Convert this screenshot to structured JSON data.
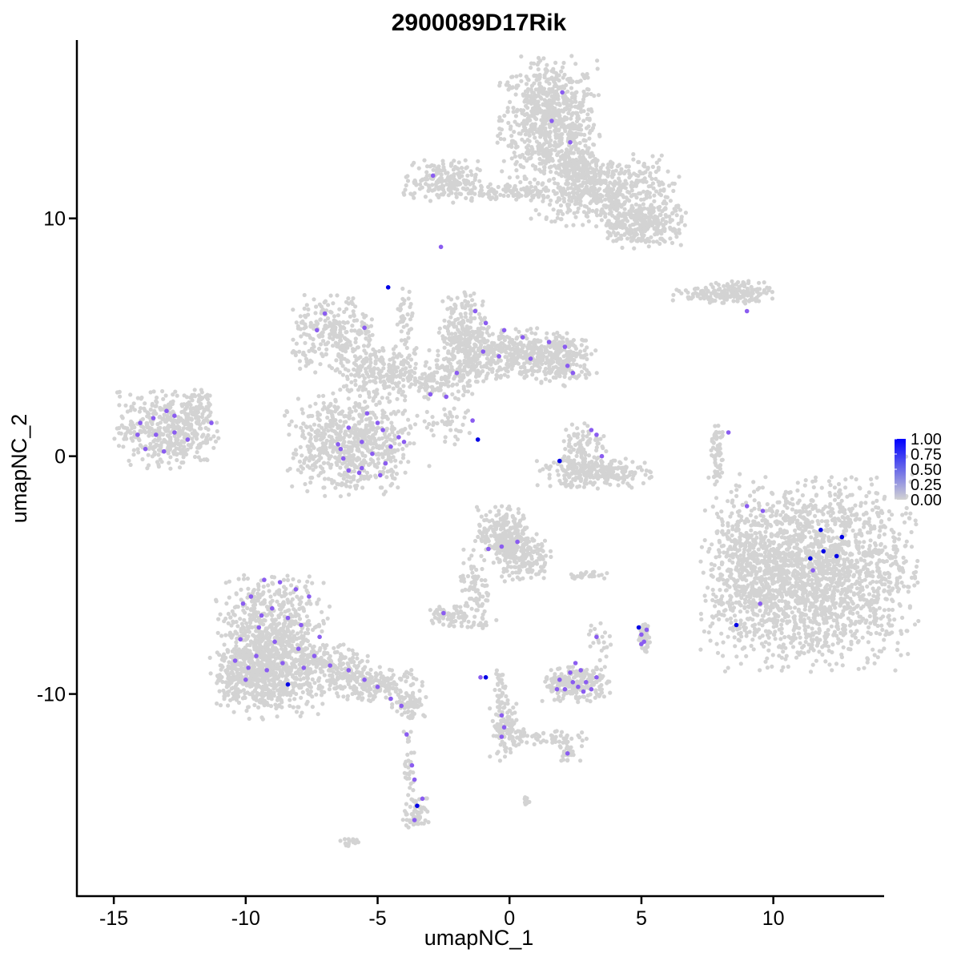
{
  "chart_data": {
    "type": "scatter",
    "title": "2900089D17Rik",
    "xlabel": "umapNC_1",
    "ylabel": "umapNC_2",
    "xlim": [
      -16.4,
      14.2
    ],
    "ylim": [
      -18.5,
      17.5
    ],
    "x_ticks": [
      -15,
      -10,
      -5,
      0,
      5,
      10
    ],
    "y_ticks": [
      -10,
      0,
      10
    ],
    "grid": false,
    "legend": {
      "placement": "right",
      "type": "colorbar",
      "labels": [
        "1.00",
        "0.75",
        "0.50",
        "0.25",
        "0.00"
      ],
      "low_color": "#D3D3D3",
      "high_color": "#0000FF"
    },
    "background_color": "#D3D3D3",
    "clusters": [
      {
        "cx": 1.5,
        "cy": 14.2,
        "sx": 0.9,
        "sy": 1.2,
        "n": 700
      },
      {
        "cx": 3.6,
        "cy": 11.2,
        "sx": 1.3,
        "sy": 0.7,
        "n": 500
      },
      {
        "cx": 5.0,
        "cy": 9.7,
        "sx": 0.8,
        "sy": 0.45,
        "n": 260
      },
      {
        "cx": -2.6,
        "cy": 11.6,
        "sx": 0.7,
        "sy": 0.4,
        "n": 180
      },
      {
        "cx": -0.1,
        "cy": 11.1,
        "sx": 1.2,
        "sy": 0.2,
        "n": 120
      },
      {
        "cx": 2.6,
        "cy": 12.2,
        "sx": 0.4,
        "sy": 0.9,
        "n": 160
      },
      {
        "cx": 8.7,
        "cy": 6.9,
        "sx": 0.6,
        "sy": 0.25,
        "n": 120
      },
      {
        "cx": 7.4,
        "cy": 6.8,
        "sx": 0.6,
        "sy": 0.15,
        "n": 60
      },
      {
        "cx": -13.0,
        "cy": 1.1,
        "sx": 0.9,
        "sy": 0.75,
        "n": 450
      },
      {
        "cx": -11.8,
        "cy": 2.2,
        "sx": 0.3,
        "sy": 0.4,
        "n": 50
      },
      {
        "cx": -6.6,
        "cy": 5.1,
        "sx": 0.8,
        "sy": 0.8,
        "n": 260
      },
      {
        "cx": -4.8,
        "cy": 3.5,
        "sx": 0.9,
        "sy": 0.5,
        "n": 250
      },
      {
        "cx": -6.0,
        "cy": 0.5,
        "sx": 1.15,
        "sy": 1.0,
        "n": 650
      },
      {
        "cx": -1.7,
        "cy": 5.1,
        "sx": 0.45,
        "sy": 0.9,
        "n": 240
      },
      {
        "cx": 0.1,
        "cy": 4.3,
        "sx": 1.3,
        "sy": 0.5,
        "n": 420
      },
      {
        "cx": 2.0,
        "cy": 4.0,
        "sx": 0.6,
        "sy": 0.5,
        "n": 180
      },
      {
        "cx": -2.5,
        "cy": 3.2,
        "sx": 0.6,
        "sy": 0.4,
        "n": 120
      },
      {
        "cx": -4.0,
        "cy": 5.8,
        "sx": 0.15,
        "sy": 0.6,
        "n": 40
      },
      {
        "cx": -2.3,
        "cy": 1.3,
        "sx": 0.6,
        "sy": 0.4,
        "n": 40
      },
      {
        "cx": 3.2,
        "cy": -0.7,
        "sx": 1.0,
        "sy": 0.3,
        "n": 260
      },
      {
        "cx": 2.8,
        "cy": 0.5,
        "sx": 0.4,
        "sy": 0.5,
        "n": 80
      },
      {
        "cx": 7.9,
        "cy": 0.0,
        "sx": 0.12,
        "sy": 0.6,
        "n": 60
      },
      {
        "cx": 11.4,
        "cy": -4.9,
        "sx": 1.9,
        "sy": 1.9,
        "n": 2000
      },
      {
        "cx": 9.1,
        "cy": -4.9,
        "sx": 0.7,
        "sy": 1.3,
        "n": 250
      },
      {
        "cx": -0.2,
        "cy": -3.3,
        "sx": 0.5,
        "sy": 0.55,
        "n": 240
      },
      {
        "cx": 0.5,
        "cy": -4.2,
        "sx": 0.5,
        "sy": 0.5,
        "n": 160
      },
      {
        "cx": -1.3,
        "cy": -5.6,
        "sx": 0.3,
        "sy": 0.8,
        "n": 80
      },
      {
        "cx": -2.3,
        "cy": -6.8,
        "sx": 0.35,
        "sy": 0.25,
        "n": 60
      },
      {
        "cx": 3.0,
        "cy": -5.0,
        "sx": 0.4,
        "sy": 0.1,
        "n": 25
      },
      {
        "cx": -9.0,
        "cy": -8.0,
        "sx": 1.0,
        "sy": 1.4,
        "n": 900
      },
      {
        "cx": -9.6,
        "cy": -9.2,
        "sx": 0.8,
        "sy": 0.6,
        "n": 300
      },
      {
        "cx": -6.8,
        "cy": -9.0,
        "sx": 0.7,
        "sy": 0.5,
        "n": 200
      },
      {
        "cx": -5.0,
        "cy": -9.6,
        "sx": 0.8,
        "sy": 0.35,
        "n": 180
      },
      {
        "cx": -3.8,
        "cy": -10.4,
        "sx": 0.3,
        "sy": 0.3,
        "n": 60
      },
      {
        "cx": -3.5,
        "cy": -15.0,
        "sx": 0.25,
        "sy": 0.35,
        "n": 70
      },
      {
        "cx": -3.8,
        "cy": -13.0,
        "sx": 0.1,
        "sy": 0.9,
        "n": 30
      },
      {
        "cx": 2.5,
        "cy": -9.6,
        "sx": 0.6,
        "sy": 0.35,
        "n": 220
      },
      {
        "cx": 5.1,
        "cy": -7.6,
        "sx": 0.12,
        "sy": 0.3,
        "n": 50
      },
      {
        "cx": -0.1,
        "cy": -11.6,
        "sx": 0.3,
        "sy": 0.6,
        "n": 80
      },
      {
        "cx": 1.2,
        "cy": -11.9,
        "sx": 0.8,
        "sy": 0.2,
        "n": 60
      },
      {
        "cx": -0.3,
        "cy": -10.2,
        "sx": 0.15,
        "sy": 0.7,
        "n": 50
      },
      {
        "cx": 2.3,
        "cy": -12.5,
        "sx": 0.3,
        "sy": 0.2,
        "n": 30
      },
      {
        "cx": 3.4,
        "cy": -7.7,
        "sx": 0.2,
        "sy": 0.4,
        "n": 20
      },
      {
        "cx": -6.0,
        "cy": -16.2,
        "sx": 0.2,
        "sy": 0.1,
        "n": 15
      },
      {
        "cx": 0.6,
        "cy": -14.5,
        "sx": 0.1,
        "sy": 0.1,
        "n": 8
      },
      {
        "cx": -1.0,
        "cy": -7.0,
        "sx": 0.3,
        "sy": 0.15,
        "n": 15
      }
    ],
    "expressed_points": [
      [
        2.0,
        15.3,
        0.6
      ],
      [
        1.6,
        14.1,
        0.6
      ],
      [
        2.3,
        13.2,
        0.6
      ],
      [
        -2.9,
        11.8,
        0.6
      ],
      [
        -2.6,
        8.8,
        0.6
      ],
      [
        -4.6,
        7.1,
        1.0
      ],
      [
        9.0,
        6.1,
        0.6
      ],
      [
        -7.0,
        6.0,
        0.6
      ],
      [
        -7.3,
        5.3,
        0.6
      ],
      [
        -5.5,
        5.4,
        0.6
      ],
      [
        -1.3,
        6.1,
        0.6
      ],
      [
        -0.9,
        5.6,
        0.6
      ],
      [
        -0.2,
        5.3,
        0.6
      ],
      [
        0.5,
        5.0,
        0.6
      ],
      [
        1.5,
        4.8,
        0.6
      ],
      [
        2.1,
        4.6,
        0.6
      ],
      [
        0.8,
        4.1,
        0.6
      ],
      [
        -0.4,
        4.2,
        0.6
      ],
      [
        -1.0,
        4.4,
        0.6
      ],
      [
        -2.0,
        3.5,
        0.6
      ],
      [
        2.2,
        3.8,
        0.6
      ],
      [
        2.4,
        3.5,
        0.6
      ],
      [
        -3.0,
        2.6,
        0.6
      ],
      [
        -2.4,
        2.5,
        0.6
      ],
      [
        -1.4,
        1.5,
        0.6
      ],
      [
        -1.2,
        0.7,
        1.0
      ],
      [
        1.9,
        -0.2,
        1.0
      ],
      [
        3.1,
        1.1,
        0.6
      ],
      [
        3.3,
        0.9,
        0.6
      ],
      [
        3.5,
        0.0,
        0.6
      ],
      [
        8.3,
        1.0,
        0.6
      ],
      [
        -14.0,
        1.4,
        0.6
      ],
      [
        -13.5,
        1.6,
        0.6
      ],
      [
        -13.0,
        1.9,
        0.6
      ],
      [
        -13.4,
        0.9,
        0.6
      ],
      [
        -12.7,
        1.0,
        0.6
      ],
      [
        -12.2,
        0.7,
        0.6
      ],
      [
        -11.3,
        1.4,
        0.6
      ],
      [
        -13.8,
        0.3,
        0.6
      ],
      [
        -12.7,
        1.7,
        0.6
      ],
      [
        -14.1,
        0.9,
        0.6
      ],
      [
        -13.1,
        0.2,
        0.6
      ],
      [
        -6.5,
        0.5,
        0.6
      ],
      [
        -6.1,
        1.2,
        0.6
      ],
      [
        -5.4,
        1.8,
        0.6
      ],
      [
        -5.6,
        0.6,
        0.6
      ],
      [
        -4.8,
        1.1,
        0.6
      ],
      [
        -4.2,
        0.8,
        0.6
      ],
      [
        -6.3,
        -0.1,
        0.6
      ],
      [
        -5.6,
        -0.5,
        0.6
      ],
      [
        -4.9,
        -0.8,
        0.6
      ],
      [
        -6.1,
        -0.6,
        0.6
      ],
      [
        -5.2,
        0.1,
        0.6
      ],
      [
        -4.5,
        0.4,
        0.6
      ],
      [
        -5.7,
        -0.7,
        0.6
      ],
      [
        -4.0,
        0.6,
        0.6
      ],
      [
        -6.4,
        0.3,
        0.6
      ],
      [
        -4.7,
        -0.3,
        0.6
      ],
      [
        -5.0,
        1.4,
        0.6
      ],
      [
        9.0,
        -2.1,
        0.6
      ],
      [
        9.6,
        -2.3,
        0.6
      ],
      [
        11.8,
        -3.1,
        1.0
      ],
      [
        12.6,
        -3.4,
        1.0
      ],
      [
        11.9,
        -4.0,
        1.0
      ],
      [
        12.4,
        -4.2,
        1.0
      ],
      [
        11.4,
        -4.3,
        1.0
      ],
      [
        11.5,
        -4.8,
        0.6
      ],
      [
        9.5,
        -6.2,
        0.6
      ],
      [
        8.6,
        -7.1,
        1.0
      ],
      [
        -0.8,
        -3.9,
        0.6
      ],
      [
        -0.3,
        -3.8,
        0.6
      ],
      [
        0.3,
        -3.6,
        0.6
      ],
      [
        -2.5,
        -6.6,
        0.6
      ],
      [
        -9.3,
        -5.2,
        0.6
      ],
      [
        -8.7,
        -5.3,
        0.6
      ],
      [
        -8.1,
        -5.6,
        0.6
      ],
      [
        -7.6,
        -5.9,
        0.6
      ],
      [
        -9.8,
        -5.9,
        0.6
      ],
      [
        -9.0,
        -6.4,
        0.6
      ],
      [
        -8.4,
        -6.8,
        0.6
      ],
      [
        -7.9,
        -7.1,
        0.6
      ],
      [
        -9.5,
        -7.2,
        0.6
      ],
      [
        -10.2,
        -7.7,
        0.6
      ],
      [
        -8.9,
        -7.8,
        0.6
      ],
      [
        -8.0,
        -8.1,
        0.6
      ],
      [
        -9.6,
        -8.4,
        0.6
      ],
      [
        -10.4,
        -8.6,
        0.6
      ],
      [
        -8.6,
        -8.7,
        0.6
      ],
      [
        -7.8,
        -8.9,
        0.6
      ],
      [
        -9.2,
        -9.0,
        0.6
      ],
      [
        -10.0,
        -9.4,
        0.6
      ],
      [
        -8.4,
        -9.6,
        1.0
      ],
      [
        -7.4,
        -8.4,
        0.6
      ],
      [
        -6.8,
        -8.8,
        0.6
      ],
      [
        -6.1,
        -9.0,
        0.6
      ],
      [
        -5.5,
        -9.4,
        0.6
      ],
      [
        -5.0,
        -9.7,
        0.6
      ],
      [
        -4.5,
        -10.2,
        0.6
      ],
      [
        -4.1,
        -10.5,
        0.6
      ],
      [
        -3.9,
        -11.7,
        0.6
      ],
      [
        -3.7,
        -13.0,
        0.6
      ],
      [
        -3.6,
        -13.6,
        0.6
      ],
      [
        -3.5,
        -14.7,
        1.0
      ],
      [
        -3.3,
        -14.4,
        0.6
      ],
      [
        -3.6,
        -15.3,
        0.6
      ],
      [
        -9.4,
        -6.7,
        0.6
      ],
      [
        -10.1,
        -6.2,
        0.6
      ],
      [
        -7.2,
        -7.6,
        0.6
      ],
      [
        -9.9,
        -8.9,
        0.6
      ],
      [
        -0.9,
        -9.3,
        1.0
      ],
      [
        -1.1,
        -9.3,
        0.6
      ],
      [
        -0.3,
        -10.9,
        0.6
      ],
      [
        -0.2,
        -11.4,
        0.6
      ],
      [
        -0.3,
        -11.8,
        0.6
      ],
      [
        1.9,
        -9.4,
        0.6
      ],
      [
        2.1,
        -9.8,
        0.6
      ],
      [
        2.4,
        -9.5,
        0.6
      ],
      [
        2.6,
        -9.7,
        0.6
      ],
      [
        2.9,
        -9.5,
        0.6
      ],
      [
        3.1,
        -9.8,
        0.6
      ],
      [
        2.3,
        -9.1,
        0.6
      ],
      [
        2.7,
        -9.0,
        0.6
      ],
      [
        3.3,
        -9.3,
        0.6
      ],
      [
        1.8,
        -9.8,
        0.6
      ],
      [
        2.5,
        -8.7,
        0.6
      ],
      [
        2.8,
        -9.9,
        0.6
      ],
      [
        2.2,
        -12.5,
        0.6
      ],
      [
        3.3,
        -7.6,
        0.6
      ],
      [
        4.9,
        -7.2,
        1.0
      ],
      [
        5.0,
        -7.5,
        0.6
      ],
      [
        5.1,
        -7.8,
        0.6
      ],
      [
        5.2,
        -7.3,
        0.6
      ],
      [
        5.0,
        -7.9,
        0.6
      ]
    ]
  }
}
